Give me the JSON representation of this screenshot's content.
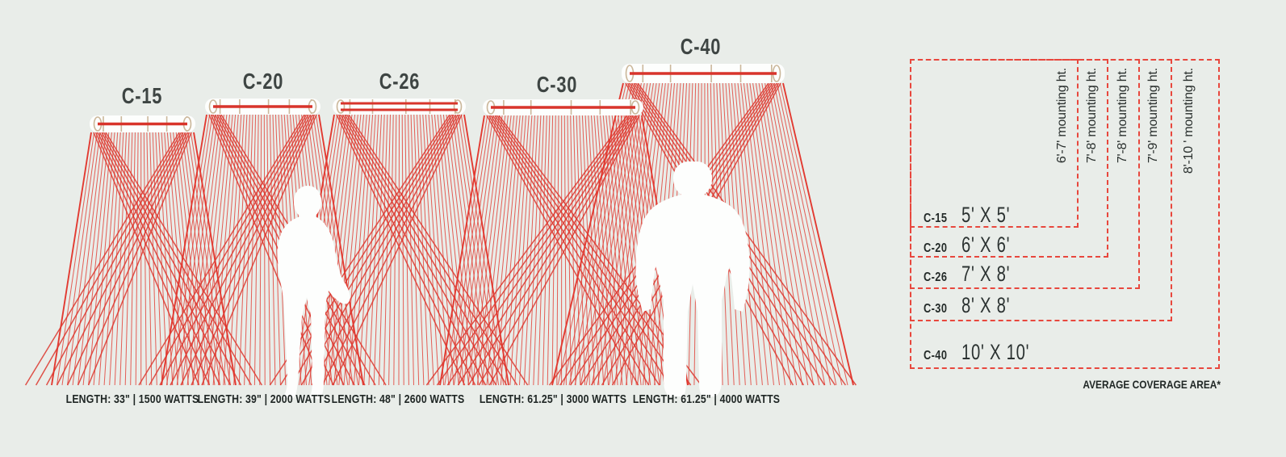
{
  "colors": {
    "background": "#e9ede9",
    "ray_red": "#e23a31",
    "heater_line_red": "#d8342b",
    "dash_red": "#e8473d",
    "detail_tan": "#cbb79a",
    "heading_gray": "#3e4543",
    "text_dark": "#202725",
    "silhouette_white": "#fdfefd"
  },
  "heaters": [
    {
      "model": "C-15",
      "spec": "LENGTH: 33\" | 1500 WATTS",
      "coverage": "5' X 5'",
      "mounting_height": "6'-7' mounting ht."
    },
    {
      "model": "C-20",
      "spec": "LENGTH: 39\" | 2000 WATTS",
      "coverage": "6' X 6'",
      "mounting_height": "7'-8' mounting ht."
    },
    {
      "model": "C-26",
      "spec": "LENGTH: 48\" | 2600 WATTS",
      "coverage": "7' X 8'",
      "mounting_height": "7'-8' mounting ht."
    },
    {
      "model": "C-30",
      "spec": "LENGTH: 61.25\" | 3000 WATTS",
      "coverage": "8' X 8'",
      "mounting_height": "7'-9' mounting ht."
    },
    {
      "model": "C-40",
      "spec": "LENGTH: 61.25\" | 4000 WATTS",
      "coverage": "10' X 10'",
      "mounting_height": "8'-10 ' mounting ht."
    }
  ],
  "coverage_chart": {
    "footnote": "AVERAGE COVERAGE AREA*"
  }
}
